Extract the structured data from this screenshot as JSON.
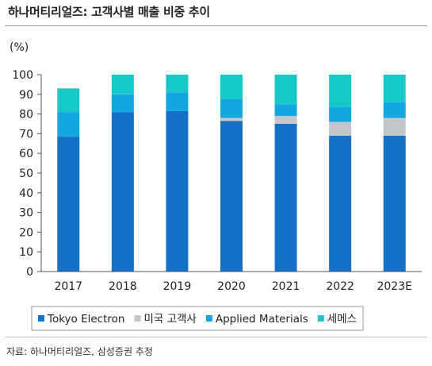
{
  "title": "하나머티리얼즈: 고객사별 매출 비중 추이",
  "source": "자료: 하나머티리얼즈, 삼성증권 추정",
  "colors": {
    "Tokyo Electron": "#1570c8",
    "미국 고객사": "#c3c7cc",
    "Applied Materials": "#14a6e0",
    "세메스": "#16c8c8"
  },
  "chart_data": {
    "type": "bar",
    "stacked": true,
    "unit_label": "(%)",
    "categories": [
      "2017",
      "2018",
      "2019",
      "2020",
      "2021",
      "2022",
      "2023E"
    ],
    "series": [
      {
        "name": "Tokyo Electron",
        "values": [
          68.5,
          81,
          81.5,
          76.5,
          75,
          69,
          69
        ]
      },
      {
        "name": "미국 고객사",
        "values": [
          0,
          0,
          0,
          1.5,
          4,
          7,
          9
        ]
      },
      {
        "name": "Applied Materials",
        "values": [
          12.5,
          9,
          9.5,
          9.5,
          6,
          7.5,
          8
        ]
      },
      {
        "name": "세메스",
        "values": [
          12,
          10,
          9,
          12.5,
          15,
          16.5,
          14
        ]
      }
    ],
    "ylim": [
      0,
      100
    ],
    "yticks": [
      0,
      10,
      20,
      30,
      40,
      50,
      60,
      70,
      80,
      90,
      100
    ],
    "grid": false,
    "legend": "bottom"
  }
}
